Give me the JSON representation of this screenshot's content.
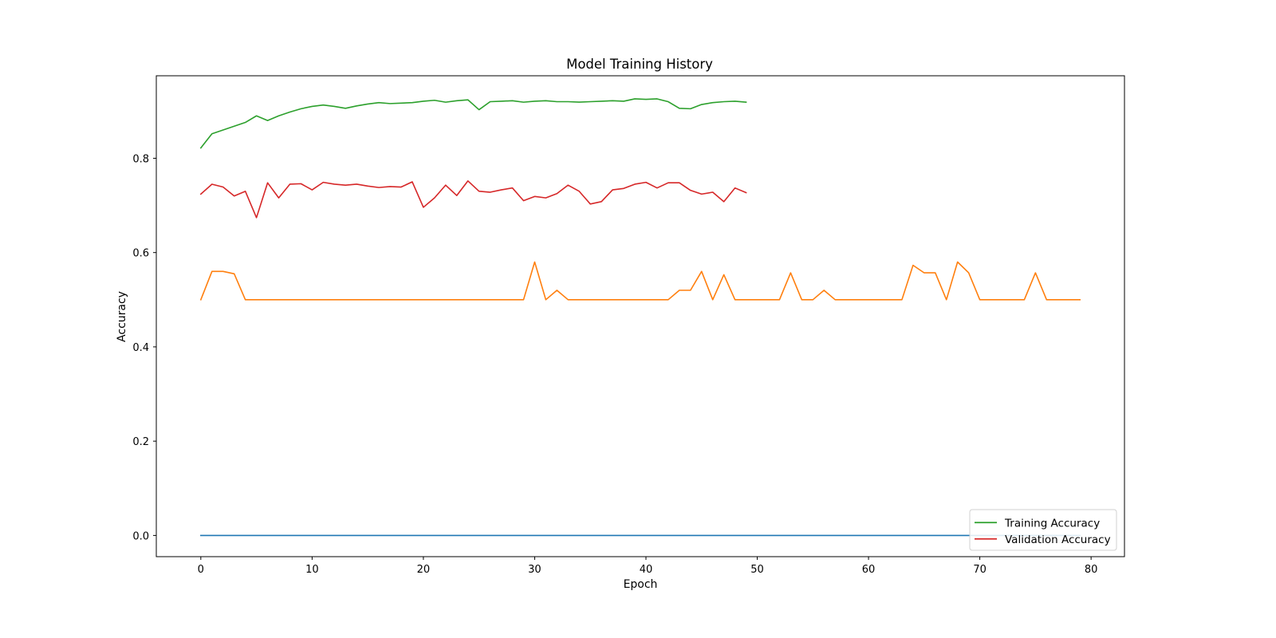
{
  "chart_data": {
    "type": "line",
    "title": "Model Training History",
    "xlabel": "Epoch",
    "ylabel": "Accuracy",
    "xlim": [
      -4,
      83
    ],
    "ylim": [
      -0.045,
      0.975
    ],
    "xticks": [
      0,
      10,
      20,
      30,
      40,
      50,
      60,
      70,
      80
    ],
    "yticks": [
      0.0,
      0.2,
      0.4,
      0.6,
      0.8
    ],
    "ytick_labels": [
      "0.0",
      "0.2",
      "0.4",
      "0.6",
      "0.8"
    ],
    "grid": false,
    "legend_position": "lower-right",
    "series": [
      {
        "color": "#1f77b4",
        "x": [
          0,
          79
        ],
        "values": [
          0.0,
          0.0
        ]
      },
      {
        "color": "#ff7f0e",
        "x": [
          0,
          1,
          2,
          3,
          4,
          5,
          6,
          7,
          8,
          9,
          10,
          11,
          12,
          13,
          14,
          15,
          16,
          17,
          18,
          19,
          20,
          21,
          22,
          23,
          24,
          25,
          26,
          27,
          28,
          29,
          30,
          31,
          32,
          33,
          34,
          35,
          36,
          37,
          38,
          39,
          40,
          41,
          42,
          43,
          44,
          45,
          46,
          47,
          48,
          49,
          50,
          51,
          52,
          53,
          54,
          55,
          56,
          57,
          58,
          59,
          60,
          61,
          62,
          63,
          64,
          65,
          66,
          67,
          68,
          69,
          70,
          71,
          72,
          73,
          74,
          75,
          76,
          77,
          78,
          79
        ],
        "values": [
          0.5,
          0.56,
          0.56,
          0.555,
          0.5,
          0.5,
          0.5,
          0.5,
          0.5,
          0.5,
          0.5,
          0.5,
          0.5,
          0.5,
          0.5,
          0.5,
          0.5,
          0.5,
          0.5,
          0.5,
          0.5,
          0.5,
          0.5,
          0.5,
          0.5,
          0.5,
          0.5,
          0.5,
          0.5,
          0.5,
          0.58,
          0.5,
          0.52,
          0.5,
          0.5,
          0.5,
          0.5,
          0.5,
          0.5,
          0.5,
          0.5,
          0.5,
          0.5,
          0.52,
          0.52,
          0.56,
          0.5,
          0.553,
          0.5,
          0.5,
          0.5,
          0.5,
          0.5,
          0.557,
          0.5,
          0.5,
          0.52,
          0.5,
          0.5,
          0.5,
          0.5,
          0.5,
          0.5,
          0.5,
          0.573,
          0.557,
          0.557,
          0.5,
          0.58,
          0.557,
          0.5,
          0.5,
          0.5,
          0.5,
          0.5,
          0.557,
          0.5,
          0.5,
          0.5,
          0.5
        ]
      },
      {
        "name": "Training Accuracy",
        "color": "#2ca02c",
        "x": [
          0,
          1,
          2,
          3,
          4,
          5,
          6,
          7,
          8,
          9,
          10,
          11,
          12,
          13,
          14,
          15,
          16,
          17,
          18,
          19,
          20,
          21,
          22,
          23,
          24,
          25,
          26,
          27,
          28,
          29,
          30,
          31,
          32,
          33,
          34,
          35,
          36,
          37,
          38,
          39,
          40,
          41,
          42,
          43,
          44,
          45,
          46,
          47,
          48,
          49
        ],
        "values": [
          0.822,
          0.852,
          0.86,
          0.868,
          0.876,
          0.89,
          0.88,
          0.89,
          0.898,
          0.905,
          0.91,
          0.913,
          0.91,
          0.906,
          0.911,
          0.915,
          0.918,
          0.916,
          0.917,
          0.918,
          0.921,
          0.923,
          0.919,
          0.922,
          0.924,
          0.903,
          0.92,
          0.921,
          0.922,
          0.919,
          0.921,
          0.922,
          0.92,
          0.92,
          0.919,
          0.92,
          0.921,
          0.922,
          0.921,
          0.926,
          0.925,
          0.926,
          0.92,
          0.906,
          0.905,
          0.914,
          0.918,
          0.92,
          0.921,
          0.919
        ]
      },
      {
        "name": "Validation Accuracy",
        "color": "#d62728",
        "x": [
          0,
          1,
          2,
          3,
          4,
          5,
          6,
          7,
          8,
          9,
          10,
          11,
          12,
          13,
          14,
          15,
          16,
          17,
          18,
          19,
          20,
          21,
          22,
          23,
          24,
          25,
          26,
          27,
          28,
          29,
          30,
          31,
          32,
          33,
          34,
          35,
          36,
          37,
          38,
          39,
          40,
          41,
          42,
          43,
          44,
          45,
          46,
          47,
          48,
          49
        ],
        "values": [
          0.724,
          0.745,
          0.739,
          0.72,
          0.73,
          0.674,
          0.748,
          0.716,
          0.745,
          0.746,
          0.733,
          0.749,
          0.745,
          0.743,
          0.745,
          0.741,
          0.738,
          0.74,
          0.739,
          0.75,
          0.696,
          0.716,
          0.743,
          0.721,
          0.752,
          0.73,
          0.728,
          0.733,
          0.737,
          0.71,
          0.719,
          0.716,
          0.725,
          0.743,
          0.73,
          0.703,
          0.708,
          0.733,
          0.736,
          0.745,
          0.749,
          0.737,
          0.748,
          0.748,
          0.732,
          0.724,
          0.728,
          0.708,
          0.737,
          0.727
        ]
      }
    ]
  }
}
